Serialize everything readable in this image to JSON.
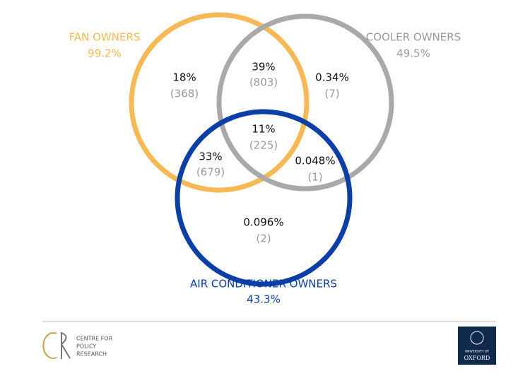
{
  "sets": [
    {
      "label": "FAN OWNERS",
      "share": "99.2%"
    },
    {
      "label": "COOLER OWNERS",
      "share": "49.5%"
    },
    {
      "label": "AIR CONDITIONER OWNERS",
      "share": "43.3%"
    }
  ],
  "regions": [
    {
      "percent": "18%",
      "count": "(368)"
    },
    {
      "percent": "39%",
      "count": "(803)"
    },
    {
      "percent": "0.34%",
      "count": "(7)"
    },
    {
      "percent": "11%",
      "count": "(225)"
    },
    {
      "percent": "33%",
      "count": "(679)"
    },
    {
      "percent": "0.048%",
      "count": "(1)"
    },
    {
      "percent": "0.096%",
      "count": "(2)"
    }
  ],
  "footer": {
    "left_logo": {
      "lines": [
        "CENTRE FOR",
        "POLICY",
        "RESEARCH"
      ]
    },
    "right_logo": {
      "lines": [
        "UNIVERSITY OF",
        "OXFORD"
      ]
    }
  }
}
